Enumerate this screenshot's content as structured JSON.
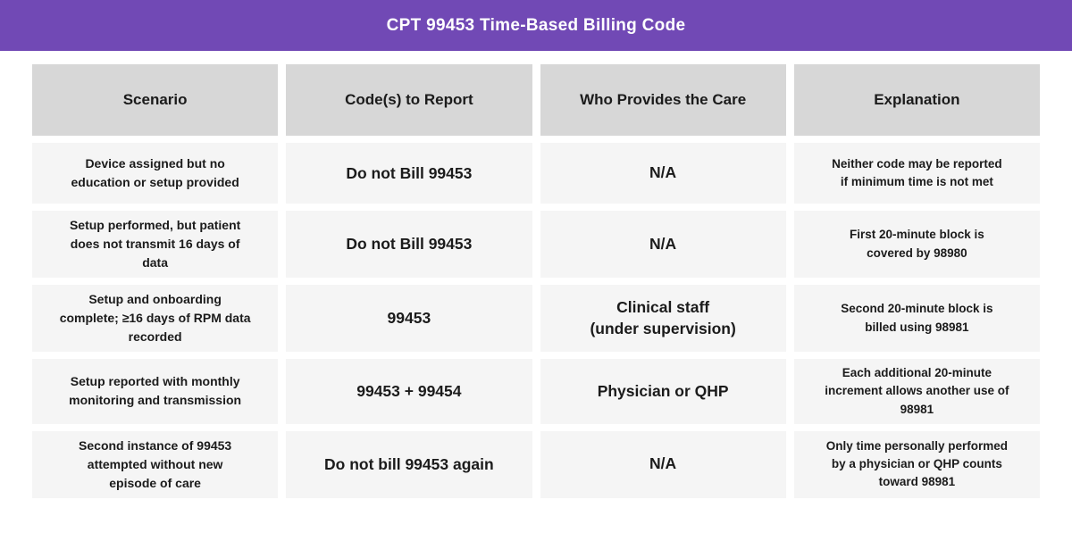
{
  "banner": {
    "title": "CPT 99453 Time-Based Billing Code",
    "background_color": "#7149B5",
    "text_color": "#ffffff"
  },
  "colors": {
    "header_cell_bg": "#d7d7d7",
    "body_cell_bg": "#f5f5f5",
    "text": "#1b1b1b",
    "page_bg": "#ffffff"
  },
  "chart_data": {
    "type": "table",
    "title": "CPT 99453 Time-Based Billing Code",
    "columns": [
      "Scenario",
      "Code(s) to Report",
      "Who Provides the Care",
      "Explanation"
    ],
    "rows": [
      [
        "Device assigned but no\neducation or setup provided",
        "Do not Bill 99453",
        "N/A",
        "Neither code may be reported\nif minimum time is not met"
      ],
      [
        "Setup performed, but patient\ndoes not transmit 16 days of\ndata",
        "Do not Bill 99453",
        "N/A",
        "First 20-minute block is\ncovered by 98980"
      ],
      [
        "Setup and onboarding\ncomplete; ≥16 days of RPM data\nrecorded",
        "99453",
        "Clinical staff\n(under supervision)",
        "Second 20-minute block is\nbilled using 98981"
      ],
      [
        "Setup reported with monthly\nmonitoring and transmission",
        "99453 + 99454",
        "Physician or QHP",
        "Each additional 20-minute\nincrement allows another use of\n98981"
      ],
      [
        "Second instance of 99453\nattempted without new\nepisode of care",
        "Do not bill 99453 again",
        "N/A",
        "Only time personally performed\nby a physician or QHP counts\ntoward 98981"
      ]
    ],
    "layout": {
      "header_row": true,
      "column_count": 4,
      "row_count": 5,
      "grid_lines": "none (white gaps between cells)"
    }
  }
}
